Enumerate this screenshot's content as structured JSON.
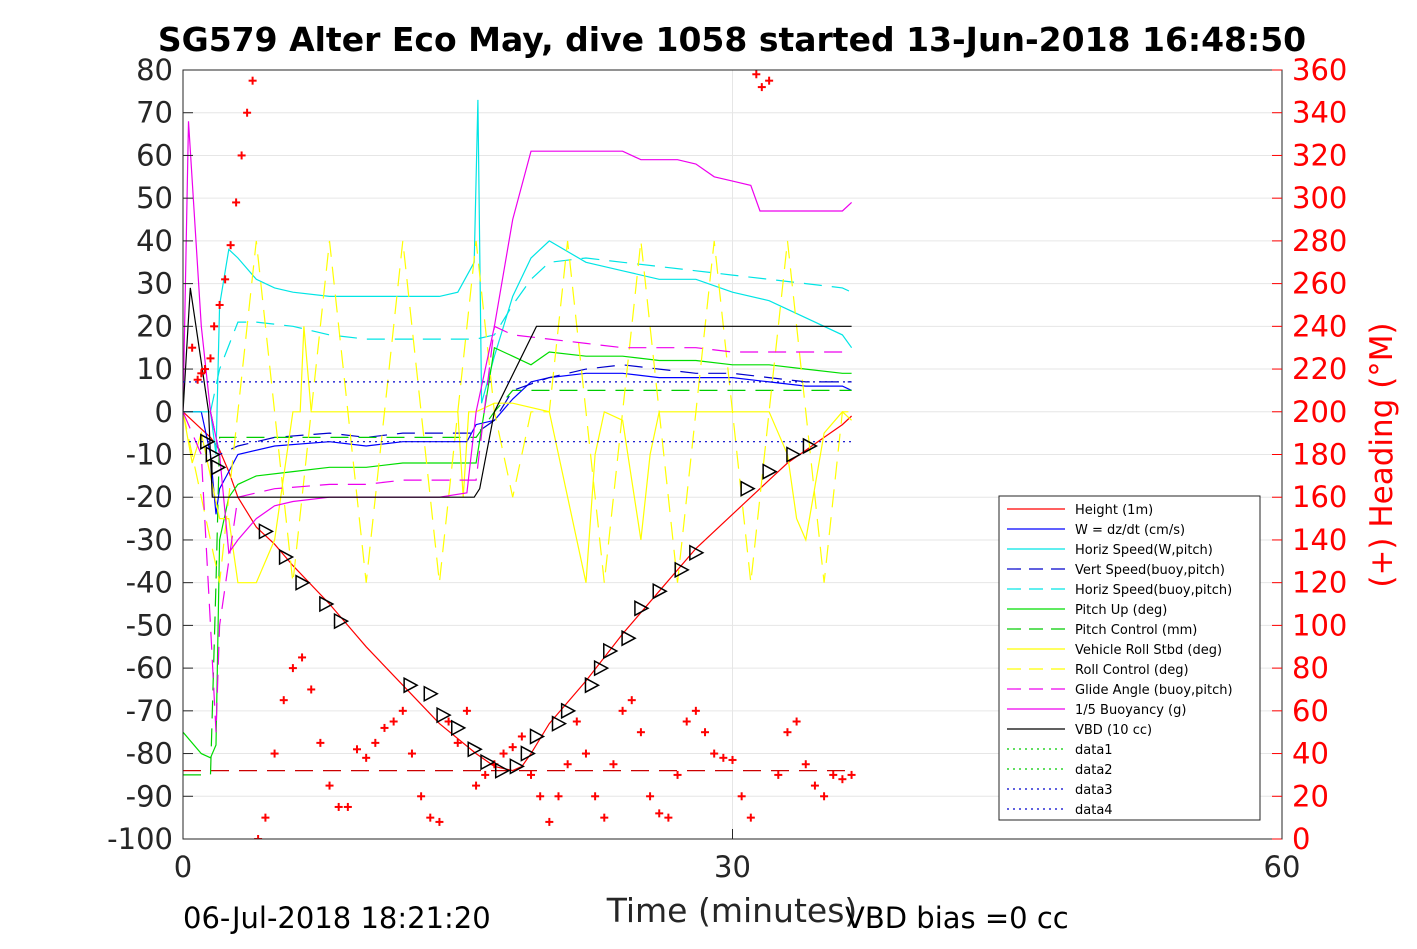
{
  "chart_data": {
    "type": "line",
    "title": "SG579 Alter Eco May, dive 1058 started 13-Jun-2018 16:48:50",
    "xlabel": "Time (minutes)",
    "ylabel_right": "(+) Heading (°M)",
    "xlim": [
      0,
      60
    ],
    "ylim": [
      -100,
      80
    ],
    "ylim_right": [
      0,
      360
    ],
    "x_ticks": [
      0,
      30,
      60
    ],
    "y_ticks": [
      -100,
      -90,
      -80,
      -70,
      -60,
      -50,
      -40,
      -30,
      -20,
      -10,
      0,
      10,
      20,
      30,
      40,
      50,
      60,
      70,
      80
    ],
    "y_ticks_right": [
      0,
      20,
      40,
      60,
      80,
      100,
      120,
      140,
      160,
      180,
      200,
      220,
      240,
      260,
      280,
      300,
      320,
      340,
      360
    ],
    "grid": true,
    "legend_placement": "lower-right",
    "footer_left": "06-Jul-2018 18:21:20",
    "footer_right": "VBD bias =0 cc",
    "series": [
      {
        "name": "Height (1m)",
        "color": "#ff0000",
        "dash": "solid",
        "x": [
          0,
          1,
          1.5,
          2,
          2.5,
          3,
          4,
          5,
          6,
          8,
          10,
          12,
          14,
          16,
          17,
          18,
          18.5,
          19,
          20,
          22,
          24,
          26,
          28,
          30,
          31,
          32,
          33,
          34,
          35,
          36,
          36.5
        ],
        "y": [
          0,
          -4,
          -6,
          -9,
          -14,
          -20,
          -27,
          -31,
          -36,
          -45,
          -55,
          -64,
          -73,
          -80,
          -83,
          -84,
          -83,
          -80,
          -73,
          -63,
          -52,
          -42,
          -32,
          -24,
          -20,
          -16,
          -12,
          -9,
          -6,
          -3,
          -1
        ]
      },
      {
        "name": "W = dz/dt (cm/s)",
        "color": "#0000ff",
        "dash": "solid",
        "x": [
          0,
          1,
          1.5,
          1.8,
          2,
          2.5,
          3,
          5,
          8,
          10,
          12,
          14,
          15.5,
          16,
          17,
          18,
          19,
          20,
          22,
          24,
          26,
          28,
          30,
          32,
          34,
          36,
          36.5
        ],
        "y": [
          0,
          0,
          -10,
          -24,
          -18,
          -14,
          -10,
          -8,
          -7,
          -8,
          -7,
          -7,
          -7,
          -3,
          -2,
          3,
          7,
          8,
          9,
          9,
          8,
          8,
          8,
          7,
          6,
          6,
          5
        ]
      },
      {
        "name": "Horiz Speed(W,pitch)",
        "color": "#00e5e5",
        "dash": "solid",
        "x": [
          0,
          1.5,
          1.8,
          2,
          2.5,
          3,
          4,
          5,
          6,
          8,
          10,
          12,
          14,
          15,
          15.9,
          16.1,
          16.3,
          17,
          18,
          19,
          20,
          22,
          24,
          26,
          28,
          30,
          32,
          34,
          36,
          36.5
        ],
        "y": [
          0,
          0,
          -10,
          25,
          38,
          36,
          31,
          29,
          28,
          27,
          27,
          27,
          27,
          28,
          35,
          73,
          2,
          13,
          27,
          36,
          40,
          35,
          33,
          31,
          31,
          28,
          26,
          22,
          18,
          15
        ]
      },
      {
        "name": "Vert Speed(buoy,pitch)",
        "color": "#0000cc",
        "dash": "dashed",
        "x": [
          0,
          1.5,
          2,
          3,
          5,
          8,
          10,
          12,
          14,
          16,
          17,
          18,
          20,
          22,
          24,
          26,
          28,
          30,
          32,
          34,
          36,
          36.5
        ],
        "y": [
          0,
          0,
          -10,
          -8,
          -6,
          -5,
          -6,
          -5,
          -5,
          -5,
          -2,
          5,
          8,
          10,
          11,
          10,
          9,
          9,
          8,
          7,
          7,
          7
        ]
      },
      {
        "name": "Horiz Speed(buoy,pitch)",
        "color": "#00e5e5",
        "dash": "dashed",
        "x": [
          0,
          1.5,
          2,
          3,
          4,
          6,
          8,
          10,
          12,
          14,
          16,
          17,
          18,
          19,
          20,
          22,
          24,
          26,
          28,
          30,
          32,
          34,
          36,
          36.5
        ],
        "y": [
          0,
          0,
          10,
          21,
          21,
          20,
          18,
          17,
          17,
          17,
          17,
          18,
          25,
          31,
          35,
          36,
          35,
          34,
          33,
          32,
          31,
          30,
          29,
          28
        ]
      },
      {
        "name": "Pitch Up (deg)",
        "color": "#00dd00",
        "dash": "solid",
        "x": [
          0,
          1,
          1.5,
          1.8,
          2,
          2.5,
          3,
          4,
          6,
          8,
          10,
          12,
          14,
          16,
          17,
          18,
          19,
          20,
          22,
          24,
          26,
          28,
          30,
          32,
          34,
          36,
          36.5
        ],
        "y": [
          -75,
          -80,
          -81,
          -78,
          -30,
          -20,
          -17,
          -15,
          -14,
          -13,
          -13,
          -12,
          -12,
          -12,
          15,
          13,
          11,
          14,
          13,
          13,
          12,
          12,
          11,
          11,
          10,
          9,
          9
        ]
      },
      {
        "name": "Pitch Control (mm)",
        "color": "#00cc00",
        "dash": "dashed",
        "x": [
          0,
          1.5,
          1.8,
          2,
          3,
          6,
          10,
          14,
          16,
          17,
          18,
          20,
          24,
          28,
          32,
          36,
          36.5
        ],
        "y": [
          -85,
          -85,
          -40,
          -6,
          -6,
          -6,
          -6,
          -6,
          -6,
          0,
          5,
          5,
          5,
          5,
          5,
          5,
          5
        ]
      },
      {
        "name": "Vehicle Roll Stbd (deg)",
        "color": "#ffff00",
        "dash": "solid",
        "x": [
          0,
          0.5,
          1,
          2,
          2.5,
          3,
          4,
          5,
          6,
          6.4,
          6.6,
          7,
          8,
          10,
          12,
          14,
          15,
          15.3,
          15.6,
          16,
          17,
          18,
          20,
          22,
          22.5,
          23,
          24,
          25,
          25.5,
          26,
          28,
          30,
          32,
          33,
          33.5,
          34,
          35,
          36,
          36.5
        ],
        "y": [
          0,
          -12,
          -5,
          -25,
          -25,
          -40,
          -40,
          -30,
          0,
          0,
          20,
          0,
          0,
          0,
          0,
          0,
          0,
          -20,
          0,
          0,
          2,
          2,
          0,
          -40,
          -10,
          0,
          -2,
          -30,
          -10,
          0,
          0,
          0,
          0,
          -10,
          -25,
          -30,
          -5,
          0,
          -2
        ]
      },
      {
        "name": "Roll Control (deg)",
        "color": "#ffff00",
        "dash": "dashed",
        "x": [
          0,
          1,
          2,
          3,
          4,
          5,
          6,
          7,
          8,
          9,
          10,
          11,
          12,
          13,
          14,
          15,
          16,
          17,
          18,
          19,
          20,
          21,
          22,
          23,
          24,
          25,
          26,
          27,
          28,
          29,
          30,
          31,
          32,
          33,
          34,
          35,
          36,
          36.5
        ],
        "y": [
          0,
          -20,
          -40,
          0,
          40,
          0,
          -40,
          0,
          40,
          0,
          -40,
          0,
          40,
          0,
          -40,
          0,
          40,
          0,
          -20,
          0,
          0,
          40,
          0,
          -40,
          0,
          40,
          0,
          -40,
          0,
          40,
          0,
          -40,
          0,
          40,
          0,
          -40,
          0,
          0
        ]
      },
      {
        "name": "Glide Angle (buoy,pitch)",
        "color": "#ee00ee",
        "dash": "dashed",
        "x": [
          0,
          1,
          1.5,
          1.8,
          2,
          3,
          5,
          8,
          10,
          12,
          14,
          16,
          17,
          18,
          20,
          22,
          24,
          26,
          28,
          30,
          32,
          34,
          36,
          36.5
        ],
        "y": [
          0,
          -10,
          -50,
          -75,
          -50,
          -20,
          -18,
          -17,
          -17,
          -16,
          -16,
          -16,
          20,
          18,
          17,
          16,
          15,
          15,
          15,
          14,
          14,
          14,
          14,
          14
        ]
      },
      {
        "name": "1/5 Buoyancy (g)",
        "color": "#ee00ee",
        "dash": "solid",
        "x": [
          0,
          0.3,
          1,
          1.5,
          2,
          2.5,
          3,
          4,
          5,
          6,
          8,
          10,
          12,
          14,
          15.5,
          16,
          17,
          18,
          19,
          19.3,
          22,
          24,
          25,
          26,
          27,
          28,
          29,
          30,
          31,
          31.5,
          32,
          34,
          36,
          36.5
        ],
        "y": [
          0,
          68,
          20,
          0,
          -10,
          -33,
          -30,
          -25,
          -22,
          -21,
          -20,
          -20,
          -20,
          -20,
          -19,
          0,
          20,
          45,
          61,
          61,
          61,
          61,
          59,
          59,
          59,
          58,
          55,
          54,
          53,
          47,
          47,
          47,
          47,
          49
        ]
      },
      {
        "name": "VBD (10 cc)",
        "color": "#000000",
        "dash": "solid",
        "x": [
          0,
          0.4,
          1.4,
          1.6,
          2.1,
          2.5,
          3,
          10,
          15.9,
          16.2,
          17,
          19.3,
          20,
          30,
          36.5
        ],
        "y": [
          0,
          29,
          0,
          -20,
          -20,
          -20,
          -20,
          -20,
          -20,
          -18,
          0,
          20,
          20,
          20,
          20
        ]
      },
      {
        "name": "data1",
        "color": "#00cc00",
        "dash": "dotted",
        "x": [],
        "y": []
      },
      {
        "name": "data2",
        "color": "#00cc00",
        "dash": "dotted",
        "x": [],
        "y": []
      },
      {
        "name": "data3",
        "color": "#0000cc",
        "dash": "dotted",
        "x": [
          0,
          36.5
        ],
        "y": [
          7,
          7
        ]
      },
      {
        "name": "data4",
        "color": "#0000cc",
        "dash": "dotted",
        "x": [
          0,
          36.5
        ],
        "y": [
          -7,
          -7
        ]
      }
    ],
    "depth_reference": {
      "color": "#cc0000",
      "dash": "dashed",
      "x": [
        0,
        36.5
      ],
      "y": [
        -84,
        -84
      ]
    },
    "heading_markers": {
      "color": "#ff0000",
      "symbol": "+",
      "axis": "right",
      "x": [
        0.5,
        0.8,
        1.0,
        1.2,
        1.5,
        1.7,
        2.0,
        2.3,
        2.6,
        2.9,
        3.2,
        3.5,
        3.8,
        4.1,
        4.5,
        5.0,
        5.5,
        6.0,
        6.5,
        7.0,
        7.5,
        8.0,
        8.5,
        9.0,
        9.5,
        10.0,
        10.5,
        11.0,
        11.5,
        12.0,
        12.5,
        13.0,
        13.5,
        14.0,
        14.5,
        15.0,
        15.5,
        16.0,
        16.5,
        17.0,
        17.5,
        18.0,
        18.5,
        19.0,
        19.5,
        20.0,
        20.5,
        21.0,
        21.5,
        22.0,
        22.5,
        23.0,
        23.5,
        24.0,
        24.5,
        25.0,
        25.5,
        26.0,
        26.5,
        27.0,
        27.5,
        28.0,
        28.5,
        29.0,
        29.5,
        30.0,
        30.5,
        31.0,
        31.3,
        31.6,
        32.0,
        32.5,
        33.0,
        33.5,
        34.0,
        34.5,
        35.0,
        35.5,
        36.0,
        36.5
      ],
      "y": [
        230,
        215,
        218,
        220,
        225,
        240,
        250,
        262,
        278,
        298,
        320,
        340,
        355,
        0,
        10,
        40,
        65,
        80,
        85,
        70,
        45,
        25,
        15,
        15,
        42,
        38,
        45,
        52,
        55,
        60,
        40,
        20,
        10,
        8,
        55,
        45,
        60,
        25,
        30,
        35,
        40,
        43,
        48,
        30,
        20,
        8,
        20,
        35,
        55,
        40,
        20,
        10,
        35,
        60,
        65,
        50,
        20,
        12,
        10,
        30,
        55,
        60,
        50,
        40,
        38,
        37,
        20,
        10,
        358,
        352,
        355,
        30,
        50,
        55,
        35,
        25,
        20,
        30,
        28,
        30
      ]
    },
    "dive_markers": {
      "color": "#000000",
      "symbol": "triangle",
      "x": [
        1.3,
        1.6,
        1.9,
        4.5,
        5.6,
        6.5,
        7.8,
        8.6,
        12.4,
        13.5,
        14.2,
        15.0,
        15.9,
        16.6,
        17.4,
        18.2,
        18.8,
        19.3,
        20.5,
        21.0,
        22.3,
        22.8,
        23.3,
        24.3,
        25.0,
        26.0,
        27.2,
        28.0,
        30.8,
        32.0,
        33.3,
        34.2
      ],
      "y": [
        -7,
        -10,
        -13,
        -28,
        -34,
        -40,
        -45,
        -49,
        -64,
        -66,
        -71,
        -74,
        -79,
        -82,
        -84,
        -83,
        -80,
        -76,
        -73,
        -70,
        -64,
        -60,
        -56,
        -53,
        -46,
        -42,
        -37,
        -33,
        -18,
        -14,
        -10,
        -8
      ]
    }
  }
}
